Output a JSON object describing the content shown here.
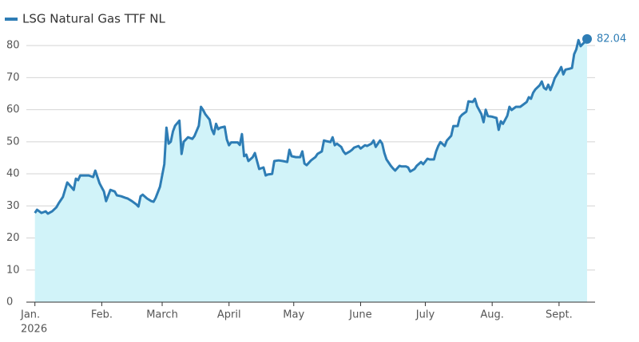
{
  "chart_data": {
    "type": "area-line",
    "x_year_label": "2026",
    "xlim": [
      -1,
      256
    ],
    "xticks": [
      {
        "value": 0,
        "label": "Jan."
      },
      {
        "value": 31,
        "label": "Feb."
      },
      {
        "value": 59,
        "label": "March"
      },
      {
        "value": 90,
        "label": "April"
      },
      {
        "value": 120,
        "label": "May"
      },
      {
        "value": 151,
        "label": "June"
      },
      {
        "value": 181,
        "label": "July"
      },
      {
        "value": 212,
        "label": "Aug."
      },
      {
        "value": 243,
        "label": "Sept."
      }
    ],
    "ylim": [
      0,
      85
    ],
    "yticks": [
      0,
      10,
      20,
      30,
      40,
      50,
      60,
      70,
      80
    ],
    "grid": true,
    "fill_color": "#d1f3f9",
    "x": [
      0,
      1,
      3,
      5,
      6,
      8,
      10,
      11,
      13,
      15,
      17,
      18,
      19,
      20,
      21,
      25,
      27,
      28,
      30,
      32,
      33,
      35,
      37,
      38,
      40,
      42,
      43,
      45,
      47,
      48,
      49,
      50,
      52,
      54,
      55,
      56,
      58,
      60,
      61,
      62,
      63,
      64,
      65,
      67,
      68,
      69,
      71,
      73,
      74,
      76,
      77,
      78,
      79,
      81,
      82,
      83,
      84,
      85,
      86,
      88,
      89,
      90,
      91,
      94,
      95,
      96,
      97,
      98,
      99,
      101,
      102,
      103,
      104,
      106,
      107,
      108,
      110,
      111,
      113,
      115,
      117,
      118,
      119,
      121,
      123,
      124,
      125,
      126,
      128,
      130,
      131,
      133,
      134,
      135,
      137,
      138,
      139,
      140,
      142,
      143,
      144,
      146,
      147,
      148,
      150,
      151,
      153,
      154,
      156,
      157,
      158,
      160,
      161,
      162,
      163,
      165,
      166,
      167,
      169,
      170,
      172,
      173,
      174,
      176,
      177,
      179,
      180,
      182,
      183,
      185,
      186,
      187,
      188,
      190,
      191,
      193,
      194,
      196,
      197,
      198,
      200,
      201,
      203,
      204,
      205,
      207,
      208,
      209,
      210,
      212,
      214,
      215,
      216,
      217,
      219,
      220,
      221,
      223,
      225,
      226,
      228,
      229,
      230,
      231,
      232,
      234,
      235,
      236,
      237,
      238,
      239,
      240,
      241,
      243,
      244,
      245,
      246,
      248,
      249,
      250,
      251,
      252,
      253,
      255,
      256
    ],
    "series": [
      {
        "name": "LSG Natural Gas TTF NL",
        "color": "#2e7db5",
        "values": [
          27.8,
          28.8,
          27.8,
          28.3,
          27.6,
          28.3,
          29.6,
          30.8,
          32.8,
          37.3,
          35.8,
          35.0,
          38.5,
          38.0,
          39.5,
          39.5,
          39.0,
          41.0,
          37.0,
          34.5,
          31.5,
          35.0,
          34.5,
          33.3,
          33.0,
          32.5,
          32.3,
          31.5,
          30.5,
          29.8,
          33.0,
          33.5,
          32.3,
          31.5,
          31.3,
          32.5,
          36.0,
          43.0,
          54.4,
          49.4,
          50.0,
          53.2,
          55.0,
          56.6,
          46.2,
          50.0,
          51.4,
          50.9,
          51.8,
          55.0,
          60.9,
          59.9,
          58.6,
          56.9,
          53.9,
          52.4,
          55.6,
          53.9,
          54.4,
          54.7,
          50.7,
          48.9,
          49.8,
          49.8,
          49.0,
          52.4,
          45.5,
          46.0,
          44.0,
          45.2,
          46.5,
          44.0,
          41.5,
          42.0,
          39.5,
          39.8,
          40.0,
          44.0,
          44.2,
          44.0,
          43.7,
          47.5,
          45.5,
          45.2,
          45.2,
          47.0,
          43.2,
          42.7,
          44.2,
          45.2,
          46.2,
          47.0,
          50.4,
          50.2,
          49.9,
          51.4,
          48.9,
          49.4,
          48.4,
          47.0,
          46.2,
          47.0,
          47.5,
          48.2,
          48.7,
          47.9,
          48.9,
          48.7,
          49.4,
          50.4,
          48.4,
          50.4,
          49.4,
          46.5,
          44.5,
          42.5,
          41.7,
          41.0,
          42.5,
          42.3,
          42.3,
          42.0,
          40.7,
          41.5,
          42.5,
          43.7,
          43.0,
          44.7,
          44.5,
          44.5,
          47.0,
          48.7,
          49.9,
          48.7,
          50.4,
          51.9,
          54.9,
          54.9,
          57.6,
          58.4,
          59.4,
          62.6,
          62.4,
          63.4,
          61.1,
          58.6,
          56.1,
          60.0,
          58.0,
          57.8,
          57.4,
          53.7,
          56.4,
          55.6,
          58.1,
          60.9,
          59.9,
          60.9,
          60.9,
          61.4,
          62.4,
          63.9,
          63.4,
          65.3,
          66.3,
          67.6,
          68.8,
          66.8,
          66.3,
          67.8,
          66.1,
          67.8,
          69.8,
          72.0,
          73.3,
          71.0,
          72.5,
          72.8,
          73.0,
          77.3,
          78.8,
          81.7,
          79.8,
          81.2,
          82.04
        ]
      }
    ]
  }
}
